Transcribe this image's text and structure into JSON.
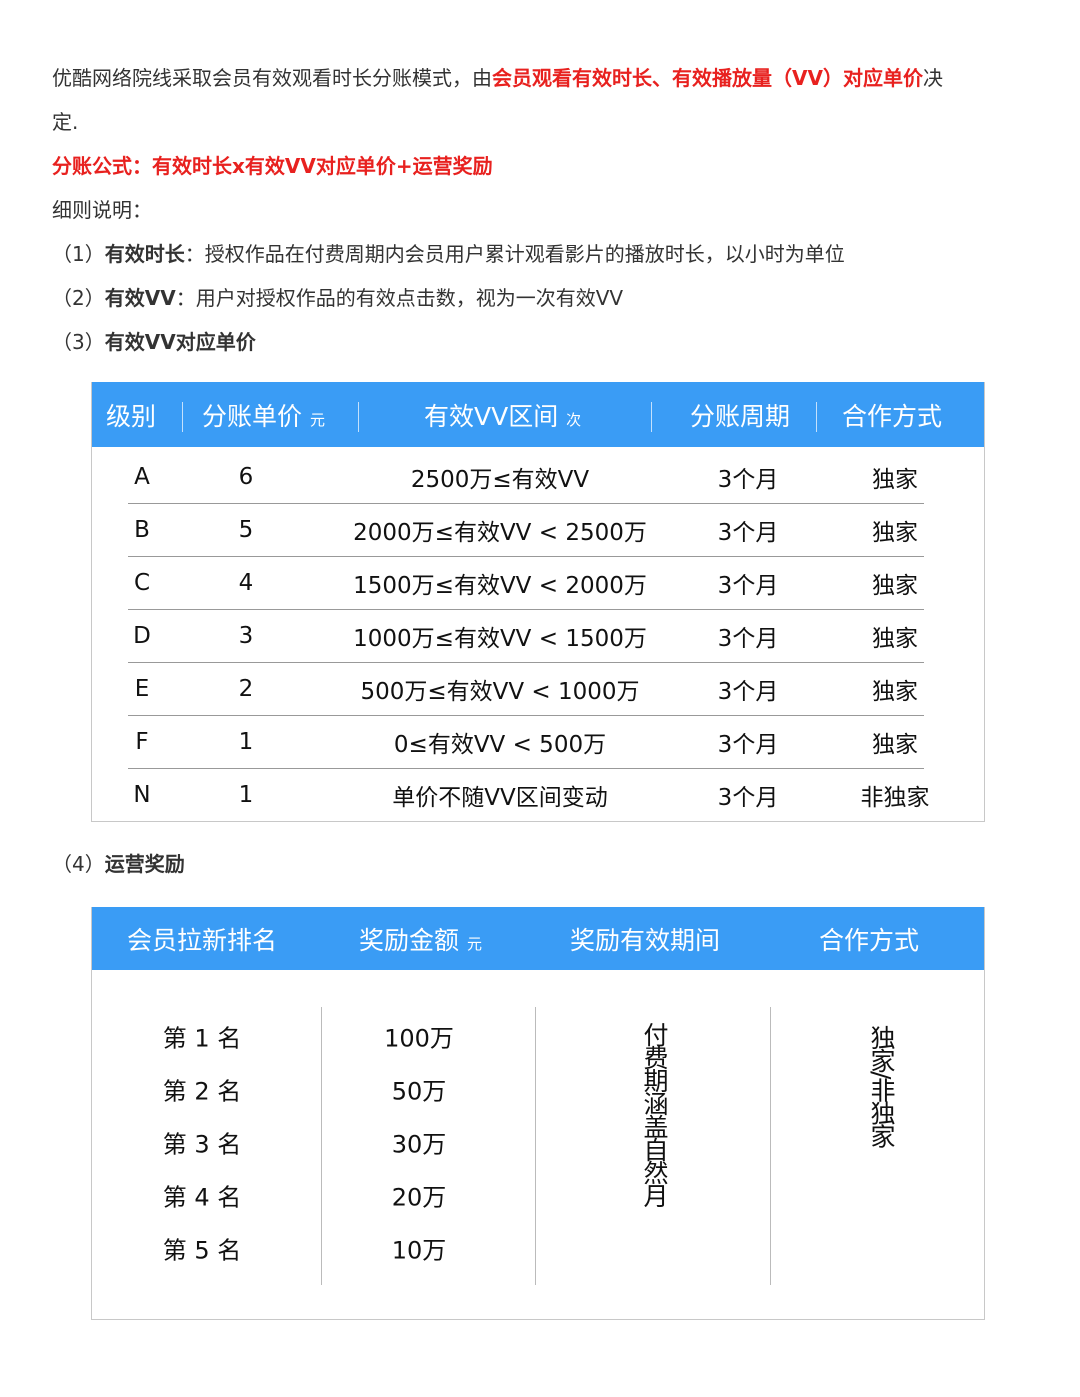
{
  "intro": {
    "text1": "优酷网络院线采取会员有效观看时长分账模式，由",
    "highlight": "会员观看有效时长、有效播放量（VV）对应单价",
    "text2": "决",
    "text3": "定."
  },
  "formula": "分账公式：有效时长x有效VV对应单价+运营奖励",
  "details_label": "细则说明：",
  "items": [
    {
      "num": "（1）",
      "term": "有效时长",
      "desc": "：授权作品在付费周期内会员用户累计观看影片的播放时长，以小时为单位"
    },
    {
      "num": "（2）",
      "term": "有效VV",
      "desc": "：用户对授权作品的有效点击数，视为一次有效VV"
    },
    {
      "num": "（3）",
      "term": "有效VV对应单价",
      "desc": ""
    },
    {
      "num": "（4）",
      "term": "运营奖励",
      "desc": ""
    }
  ],
  "colors": {
    "header_blue": "#3a9cf5",
    "highlight_red": "#e8211f"
  },
  "table1": {
    "headers": [
      "级别",
      "分账单价",
      "有效VV区间",
      "分账周期",
      "合作方式"
    ],
    "units": {
      "price": "元",
      "range": "次"
    },
    "rows": [
      {
        "level": "A",
        "price": "6",
        "range": "2500万≤有效VV",
        "period": "3个月",
        "type": "独家"
      },
      {
        "level": "B",
        "price": "5",
        "range": "2000万≤有效VV < 2500万",
        "period": "3个月",
        "type": "独家"
      },
      {
        "level": "C",
        "price": "4",
        "range": "1500万≤有效VV < 2000万",
        "period": "3个月",
        "type": "独家"
      },
      {
        "level": "D",
        "price": "3",
        "range": "1000万≤有效VV < 1500万",
        "period": "3个月",
        "type": "独家"
      },
      {
        "level": "E",
        "price": "2",
        "range": "500万≤有效VV < 1000万",
        "period": "3个月",
        "type": "独家"
      },
      {
        "level": "F",
        "price": "1",
        "range": "0≤有效VV < 500万",
        "period": "3个月",
        "type": "独家"
      },
      {
        "level": "N",
        "price": "1",
        "range": "单价不随VV区间变动",
        "period": "3个月",
        "type": "非独家"
      }
    ]
  },
  "table2": {
    "headers": [
      "会员拉新排名",
      "奖励金额",
      "奖励有效期间",
      "合作方式"
    ],
    "unit": "元",
    "ranks": [
      "第 1 名",
      "第 2 名",
      "第 3 名",
      "第 4 名",
      "第 5 名"
    ],
    "amounts": [
      "100万",
      "50万",
      "30万",
      "20万",
      "10万"
    ],
    "period": "付费期涵盖自然月",
    "type": "独家/非独家"
  }
}
